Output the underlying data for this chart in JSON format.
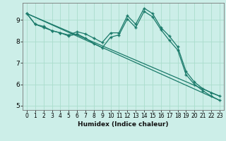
{
  "title": "",
  "xlabel": "Humidex (Indice chaleur)",
  "ylabel": "",
  "bg_color": "#cceee8",
  "grid_color": "#aaddcc",
  "line_color": "#1a7a6a",
  "xlim": [
    -0.5,
    23.5
  ],
  "ylim": [
    4.8,
    9.8
  ],
  "xticks": [
    0,
    1,
    2,
    3,
    4,
    5,
    6,
    7,
    8,
    9,
    10,
    11,
    12,
    13,
    14,
    15,
    16,
    17,
    18,
    19,
    20,
    21,
    22,
    23
  ],
  "yticks": [
    5,
    6,
    7,
    8,
    9
  ],
  "line1_x": [
    0,
    1,
    2,
    3,
    4,
    5,
    6,
    7,
    8,
    9,
    10,
    11,
    12,
    13,
    14,
    15,
    16,
    17,
    18,
    19,
    20,
    21,
    22,
    23
  ],
  "line1_y": [
    9.3,
    8.8,
    8.7,
    8.5,
    8.4,
    8.3,
    8.45,
    8.35,
    8.15,
    7.95,
    8.4,
    8.4,
    9.2,
    8.8,
    9.55,
    9.3,
    8.65,
    8.25,
    7.75,
    6.6,
    6.1,
    5.8,
    5.6,
    5.45
  ],
  "line2_x": [
    0,
    1,
    2,
    3,
    4,
    5,
    6,
    7,
    8,
    9,
    10,
    11,
    12,
    13,
    14,
    15,
    16,
    17,
    18,
    19,
    20,
    21,
    22,
    23
  ],
  "line2_y": [
    9.3,
    8.8,
    8.65,
    8.5,
    8.4,
    8.25,
    8.35,
    8.15,
    7.9,
    7.7,
    8.2,
    8.3,
    9.05,
    8.65,
    9.4,
    9.15,
    8.55,
    8.05,
    7.6,
    6.45,
    6.0,
    5.7,
    5.45,
    5.25
  ],
  "line3_x": [
    0,
    23
  ],
  "line3_y": [
    9.3,
    5.45
  ],
  "line4_x": [
    0,
    23
  ],
  "line4_y": [
    9.3,
    5.25
  ]
}
